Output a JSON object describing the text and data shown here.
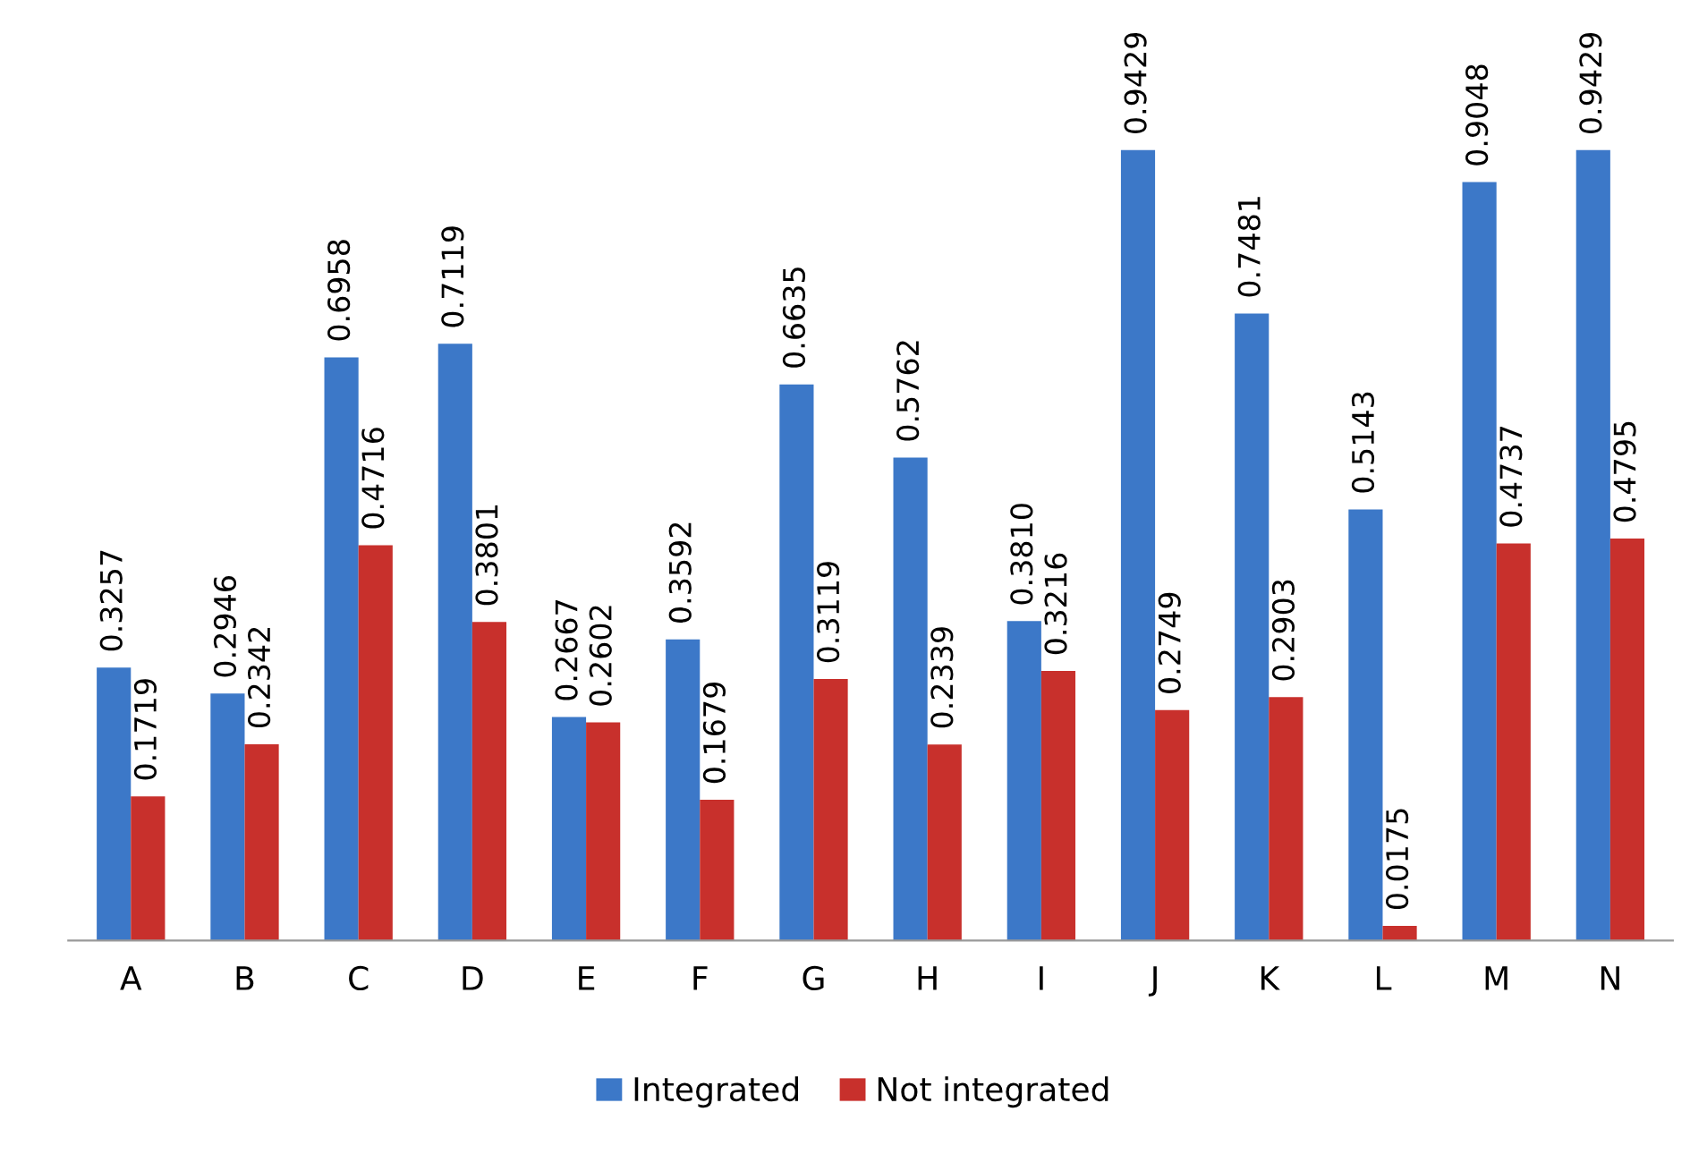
{
  "chart_data": {
    "type": "bar",
    "categories": [
      "A",
      "B",
      "C",
      "D",
      "E",
      "F",
      "G",
      "H",
      "I",
      "J",
      "K",
      "L",
      "M",
      "N"
    ],
    "series": [
      {
        "name": "Integrated",
        "color": "#3c78c8",
        "values": [
          0.3257,
          0.2946,
          0.6958,
          0.7119,
          0.2667,
          0.3592,
          0.6635,
          0.5762,
          0.381,
          0.9429,
          0.7481,
          0.5143,
          0.9048,
          0.9429
        ],
        "value_labels": [
          "0.3257",
          "0.2946",
          "0.6958",
          "0.7119",
          "0.2667",
          "0.3592",
          "0.6635",
          "0.5762",
          "0.3810",
          "0.9429",
          "0.7481",
          "0.5143",
          "0.9048",
          "0.9429"
        ]
      },
      {
        "name": "Not integrated",
        "color": "#c8302c",
        "values": [
          0.1719,
          0.2342,
          0.4716,
          0.3801,
          0.2602,
          0.1679,
          0.3119,
          0.2339,
          0.3216,
          0.2749,
          0.2903,
          0.0175,
          0.4737,
          0.4795
        ],
        "value_labels": [
          "0.1719",
          "0.2342",
          "0.4716",
          "0.3801",
          "0.2602",
          "0.1679",
          "0.3119",
          "0.2339",
          "0.3216",
          "0.2749",
          "0.2903",
          "0.0175",
          "0.4737",
          "0.4795"
        ]
      }
    ],
    "legend": "bottom",
    "grid": false
  }
}
